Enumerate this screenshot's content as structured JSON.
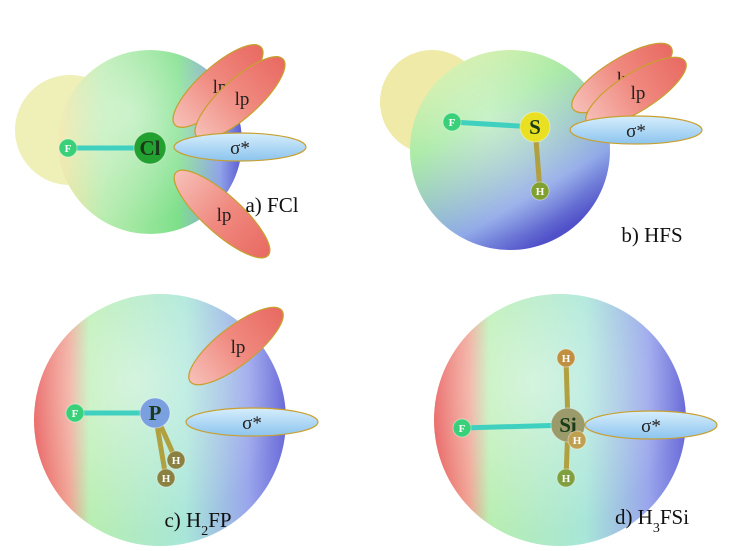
{
  "panels": [
    {
      "label": [
        "a) FCl"
      ],
      "atoms": [
        "F",
        "Cl"
      ],
      "orbitals": [
        "lp",
        "lp",
        "σ*",
        "lp"
      ]
    },
    {
      "label": [
        "b) HFS"
      ],
      "atoms": [
        "F",
        "S",
        "H"
      ],
      "orbitals": [
        "lp",
        "lp",
        "σ*"
      ]
    },
    {
      "label": [
        "c) H",
        "2",
        "FP"
      ],
      "atoms": [
        "F",
        "P",
        "H",
        "H"
      ],
      "orbitals": [
        "lp",
        "σ*"
      ]
    },
    {
      "label": [
        "d) H",
        "3",
        "FSi"
      ],
      "atoms": [
        "F",
        "Si",
        "H",
        "H",
        "H"
      ],
      "orbitals": [
        "σ*"
      ]
    }
  ]
}
